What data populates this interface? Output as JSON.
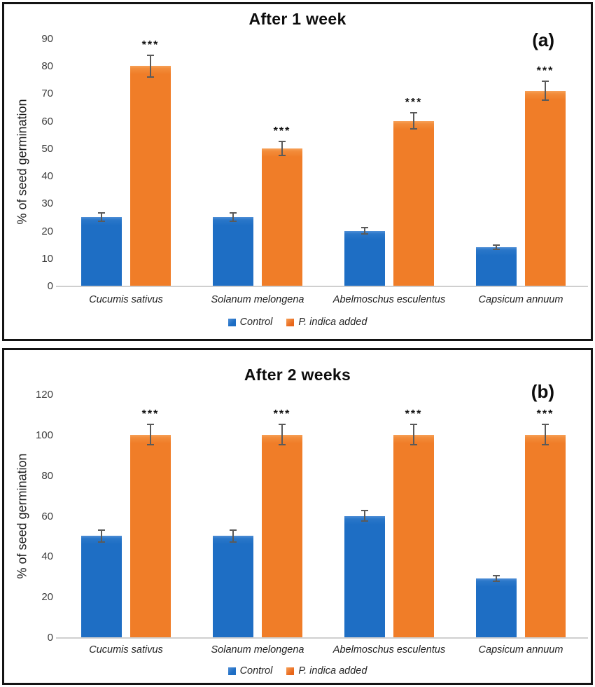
{
  "figure": {
    "background": "#ffffff",
    "panel_border_color": "#141414",
    "series_colors": {
      "control": "#1e6ec4",
      "p_indica": "#f07d28"
    },
    "error_bar_color": "#5a5a5a",
    "baseline_color": "#cfcfcf"
  },
  "chart_data": [
    {
      "type": "bar",
      "panel_label": "(a)",
      "title": "After 1 week",
      "xlabel": "",
      "ylabel": "% of seed germination",
      "ylim": [
        0,
        90
      ],
      "yticks": [
        0,
        10,
        20,
        30,
        40,
        50,
        60,
        70,
        80,
        90
      ],
      "grid": false,
      "legend_position": "bottom",
      "categories": [
        "Cucumis sativus",
        "Solanum melongena",
        "Abelmoschus esculentus",
        "Capsicum annuum"
      ],
      "series": [
        {
          "name": "Control",
          "color_key": "control",
          "values": [
            25,
            25,
            20,
            14
          ],
          "errors": [
            1.5,
            1.5,
            1.2,
            0.8
          ],
          "significance": [
            "",
            "",
            "",
            ""
          ]
        },
        {
          "name": "P. indica added",
          "color_key": "p_indica",
          "values": [
            80,
            50,
            60,
            71
          ],
          "errors": [
            4,
            2.5,
            3,
            3.5
          ],
          "significance": [
            "***",
            "***",
            "***",
            "***"
          ]
        }
      ]
    },
    {
      "type": "bar",
      "panel_label": "(b)",
      "title": "After 2 weeks",
      "xlabel": "",
      "ylabel": "% of seed germination",
      "ylim": [
        0,
        120
      ],
      "yticks": [
        0,
        20,
        40,
        60,
        80,
        100,
        120
      ],
      "grid": false,
      "legend_position": "bottom",
      "categories": [
        "Cucumis sativus",
        "Solanum melongena",
        "Abelmoschus esculentus",
        "Capsicum annuum"
      ],
      "series": [
        {
          "name": "Control",
          "color_key": "control",
          "values": [
            50,
            50,
            60,
            29
          ],
          "errors": [
            3,
            3,
            2.5,
            1.5
          ],
          "significance": [
            "",
            "",
            "",
            ""
          ]
        },
        {
          "name": "P. indica added",
          "color_key": "p_indica",
          "values": [
            100,
            100,
            100,
            100
          ],
          "errors": [
            5,
            5,
            5,
            5
          ],
          "significance": [
            "***",
            "***",
            "***",
            "***"
          ]
        }
      ]
    }
  ]
}
